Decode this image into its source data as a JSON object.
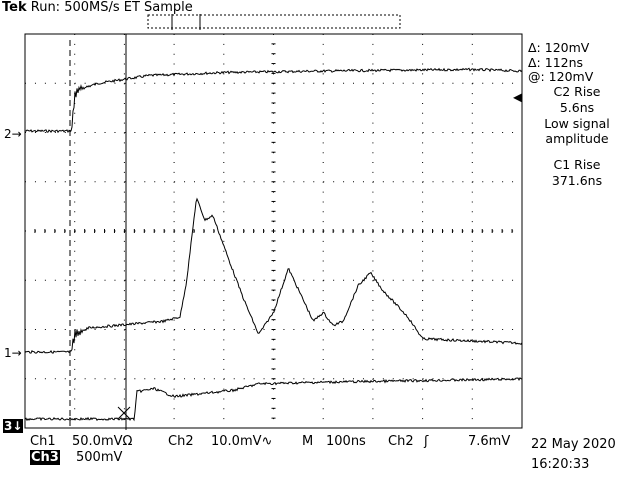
{
  "header": {
    "brand": "Tek",
    "status": "Run: 500MS/s ET Sample"
  },
  "readout": {
    "delta_v": "Δ: 120mV",
    "delta_t": "Δ: 112ns",
    "at_v": "@: 120mV",
    "m1_title": "C2 Rise",
    "m1_value": "5.6ns",
    "m1_note1": "Low signal",
    "m1_note2": "amplitude",
    "m2_title": "C1 Rise",
    "m2_value": "371.6ns"
  },
  "markers": {
    "ch2": "2→",
    "ch1": "1→",
    "ch3": "3↓",
    "trig": "◀"
  },
  "bottom": {
    "ch1_label": "Ch1",
    "ch1_scale": "50.0mVΩ",
    "ch2_label": "Ch2",
    "ch2_scale": "10.0mV∿",
    "time_label": "M",
    "time_scale": "100ns",
    "trig_src": "Ch2",
    "trig_slope": "ʃ",
    "trig_level": "7.6mV",
    "ch3_label": "Ch3",
    "ch3_scale": "500mV",
    "date": "22 May 2020",
    "time": "16:20:33"
  },
  "chart_data": {
    "type": "line",
    "x_unit": "ns",
    "time_per_div": 100,
    "series": [
      {
        "name": "2",
        "points": [
          [
            0,
            0
          ],
          [
            94,
            0
          ],
          [
            100,
            1.2
          ],
          [
            110,
            1.4
          ],
          [
            150,
            1.6
          ],
          [
            250,
            1.85
          ],
          [
            400,
            1.95
          ],
          [
            600,
            2.0
          ],
          [
            900,
            2.05
          ],
          [
            1000,
            2.0
          ]
        ]
      },
      {
        "name": "1",
        "points": [
          [
            0,
            0
          ],
          [
            94,
            0
          ],
          [
            100,
            0.4
          ],
          [
            130,
            0.55
          ],
          [
            280,
            0.7
          ],
          [
            312,
            0.8
          ],
          [
            325,
            1.6
          ],
          [
            345,
            3.5
          ],
          [
            362,
            3.0
          ],
          [
            378,
            3.1
          ],
          [
            410,
            2.1
          ],
          [
            440,
            1.2
          ],
          [
            470,
            0.4
          ],
          [
            500,
            0.9
          ],
          [
            530,
            1.9
          ],
          [
            555,
            1.3
          ],
          [
            580,
            0.7
          ],
          [
            600,
            0.9
          ],
          [
            620,
            0.6
          ],
          [
            640,
            0.7
          ],
          [
            670,
            1.5
          ],
          [
            695,
            1.8
          ],
          [
            720,
            1.4
          ],
          [
            770,
            0.8
          ],
          [
            800,
            0.3
          ],
          [
            1000,
            0.2
          ]
        ]
      },
      {
        "name": "3",
        "points": [
          [
            0,
            0
          ],
          [
            220,
            0
          ],
          [
            225,
            0.85
          ],
          [
            260,
            0.95
          ],
          [
            300,
            0.7
          ],
          [
            420,
            0.9
          ],
          [
            470,
            1.1
          ],
          [
            600,
            1.15
          ],
          [
            800,
            1.2
          ],
          [
            1000,
            1.25
          ]
        ]
      }
    ]
  }
}
